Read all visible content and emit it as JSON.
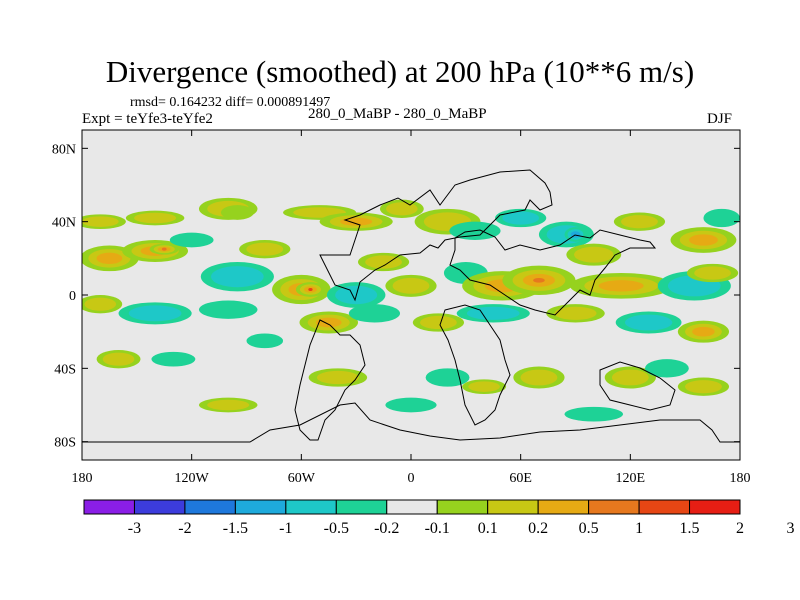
{
  "figure": {
    "title": "Divergence (smoothed) at 200 hPa (10**6 m/s)",
    "stats_text": "rmsd= 0.164232  diff= 0.000891497",
    "experiment_left": "Expt = teYfe3-teYfe2",
    "experiment_center": "280_0_MaBP - 280_0_MaBP",
    "season": "DJF"
  },
  "colors": {
    "background_zero": "#e8e8e8",
    "coastline": "#000000",
    "levels_colors": [
      "#8a1ee6",
      "#3c3cdc",
      "#1e78dc",
      "#1eaadc",
      "#1ec8c8",
      "#1ed296",
      "#e8e8e8",
      "#96d21e",
      "#c8c814",
      "#e6aa14",
      "#e6781e",
      "#e64614",
      "#e61e14"
    ]
  },
  "chart_data": {
    "type": "contour_map",
    "variable": "Divergence (smoothed) at 200 hPa",
    "units": "10**6 m/s",
    "projection": "cylindrical equidistant",
    "xlim": [
      -180,
      180
    ],
    "ylim": [
      -90,
      90
    ],
    "x_ticks": [
      {
        "value": -180,
        "label": "180"
      },
      {
        "value": -120,
        "label": "120W"
      },
      {
        "value": -60,
        "label": "60W"
      },
      {
        "value": 0,
        "label": "0"
      },
      {
        "value": 60,
        "label": "60E"
      },
      {
        "value": 120,
        "label": "120E"
      },
      {
        "value": 180,
        "label": "180"
      }
    ],
    "y_ticks": [
      {
        "value": 80,
        "label": "80N"
      },
      {
        "value": 40,
        "label": "40N"
      },
      {
        "value": 0,
        "label": "0"
      },
      {
        "value": -40,
        "label": "40S"
      },
      {
        "value": -80,
        "label": "80S"
      }
    ],
    "colorbar_levels": [
      "-3",
      "-2",
      "-1.5",
      "-1",
      "-0.5",
      "-0.2",
      "-0.1",
      "0.1",
      "0.2",
      "0.5",
      "1",
      "1.5",
      "2",
      "3"
    ],
    "blobs": [
      {
        "lon": -170,
        "lat": 40,
        "rlon": 14,
        "rlat": 4,
        "level": 2
      },
      {
        "lon": -140,
        "lat": 42,
        "rlon": 16,
        "rlat": 4,
        "level": 2
      },
      {
        "lon": -100,
        "lat": 47,
        "rlon": 16,
        "rlat": 6,
        "level": 2
      },
      {
        "lon": -95,
        "lat": 45,
        "rlon": 9,
        "rlat": 4,
        "level": 1
      },
      {
        "lon": -50,
        "lat": 45,
        "rlon": 20,
        "rlat": 4,
        "level": 2
      },
      {
        "lon": -30,
        "lat": 40,
        "rlon": 20,
        "rlat": 5,
        "level": 3
      },
      {
        "lon": -5,
        "lat": 47,
        "rlon": 12,
        "rlat": 5,
        "level": 2
      },
      {
        "lon": 20,
        "lat": 40,
        "rlon": 18,
        "rlat": 7,
        "level": 2
      },
      {
        "lon": 35,
        "lat": 35,
        "rlon": 14,
        "rlat": 5,
        "level": -1
      },
      {
        "lon": 60,
        "lat": 42,
        "rlon": 14,
        "rlat": 5,
        "level": -2
      },
      {
        "lon": 85,
        "lat": 33,
        "rlon": 15,
        "rlat": 7,
        "level": -2
      },
      {
        "lon": 90,
        "lat": 33,
        "rlon": 6,
        "rlat": 4,
        "level": -3
      },
      {
        "lon": 100,
        "lat": 22,
        "rlon": 15,
        "rlat": 6,
        "level": 2
      },
      {
        "lon": 125,
        "lat": 40,
        "rlon": 14,
        "rlat": 5,
        "level": 2
      },
      {
        "lon": 160,
        "lat": 30,
        "rlon": 18,
        "rlat": 7,
        "level": 3
      },
      {
        "lon": 170,
        "lat": 42,
        "rlon": 10,
        "rlat": 5,
        "level": -1
      },
      {
        "lon": -165,
        "lat": 20,
        "rlon": 16,
        "rlat": 7,
        "level": 3
      },
      {
        "lon": -140,
        "lat": 24,
        "rlon": 18,
        "rlat": 6,
        "level": 3
      },
      {
        "lon": -135,
        "lat": 25,
        "rlon": 8,
        "rlat": 3,
        "level": 4
      },
      {
        "lon": -120,
        "lat": 30,
        "rlon": 12,
        "rlat": 4,
        "level": -1
      },
      {
        "lon": -95,
        "lat": 10,
        "rlon": 20,
        "rlat": 8,
        "level": -2
      },
      {
        "lon": -80,
        "lat": 25,
        "rlon": 14,
        "rlat": 5,
        "level": 2
      },
      {
        "lon": -60,
        "lat": 3,
        "rlon": 16,
        "rlat": 8,
        "level": 4
      },
      {
        "lon": -55,
        "lat": 3,
        "rlon": 8,
        "rlat": 4,
        "level": 5
      },
      {
        "lon": -30,
        "lat": 0,
        "rlon": 16,
        "rlat": 7,
        "level": -2
      },
      {
        "lon": -15,
        "lat": 18,
        "rlon": 14,
        "rlat": 5,
        "level": 2
      },
      {
        "lon": 0,
        "lat": 5,
        "rlon": 14,
        "rlat": 6,
        "level": 2
      },
      {
        "lon": 30,
        "lat": 12,
        "rlon": 12,
        "rlat": 6,
        "level": -1
      },
      {
        "lon": 50,
        "lat": 5,
        "rlon": 22,
        "rlat": 8,
        "level": 3
      },
      {
        "lon": 70,
        "lat": 8,
        "rlon": 20,
        "rlat": 8,
        "level": 4
      },
      {
        "lon": 115,
        "lat": 5,
        "rlon": 28,
        "rlat": 7,
        "level": 3
      },
      {
        "lon": 155,
        "lat": 5,
        "rlon": 20,
        "rlat": 8,
        "level": -2
      },
      {
        "lon": 165,
        "lat": 12,
        "rlon": 14,
        "rlat": 5,
        "level": 2
      },
      {
        "lon": -170,
        "lat": -5,
        "rlon": 12,
        "rlat": 5,
        "level": 2
      },
      {
        "lon": -140,
        "lat": -10,
        "rlon": 20,
        "rlat": 6,
        "level": -2
      },
      {
        "lon": -100,
        "lat": -8,
        "rlon": 16,
        "rlat": 5,
        "level": -1
      },
      {
        "lon": -45,
        "lat": -15,
        "rlon": 16,
        "rlat": 6,
        "level": 3
      },
      {
        "lon": -20,
        "lat": -10,
        "rlon": 14,
        "rlat": 5,
        "level": -1
      },
      {
        "lon": 15,
        "lat": -15,
        "rlon": 14,
        "rlat": 5,
        "level": 2
      },
      {
        "lon": 45,
        "lat": -10,
        "rlon": 20,
        "rlat": 5,
        "level": -2
      },
      {
        "lon": 90,
        "lat": -10,
        "rlon": 16,
        "rlat": 5,
        "level": 2
      },
      {
        "lon": 130,
        "lat": -15,
        "rlon": 18,
        "rlat": 6,
        "level": -2
      },
      {
        "lon": 160,
        "lat": -20,
        "rlon": 14,
        "rlat": 6,
        "level": 3
      },
      {
        "lon": -160,
        "lat": -35,
        "rlon": 12,
        "rlat": 5,
        "level": 2
      },
      {
        "lon": -130,
        "lat": -35,
        "rlon": 12,
        "rlat": 4,
        "level": -1
      },
      {
        "lon": -80,
        "lat": -25,
        "rlon": 10,
        "rlat": 4,
        "level": -1
      },
      {
        "lon": -40,
        "lat": -45,
        "rlon": 16,
        "rlat": 5,
        "level": 2
      },
      {
        "lon": 20,
        "lat": -45,
        "rlon": 12,
        "rlat": 5,
        "level": -1
      },
      {
        "lon": 40,
        "lat": -50,
        "rlon": 12,
        "rlat": 4,
        "level": 2
      },
      {
        "lon": 70,
        "lat": -45,
        "rlon": 14,
        "rlat": 6,
        "level": 2
      },
      {
        "lon": 120,
        "lat": -45,
        "rlon": 14,
        "rlat": 6,
        "level": 2
      },
      {
        "lon": 140,
        "lat": -40,
        "rlon": 12,
        "rlat": 5,
        "level": -1
      },
      {
        "lon": 160,
        "lat": -50,
        "rlon": 14,
        "rlat": 5,
        "level": 2
      },
      {
        "lon": -100,
        "lat": -60,
        "rlon": 16,
        "rlat": 4,
        "level": 2
      },
      {
        "lon": 0,
        "lat": -60,
        "rlon": 14,
        "rlat": 4,
        "level": -1
      },
      {
        "lon": 100,
        "lat": -65,
        "rlon": 16,
        "rlat": 4,
        "level": -1
      }
    ]
  }
}
